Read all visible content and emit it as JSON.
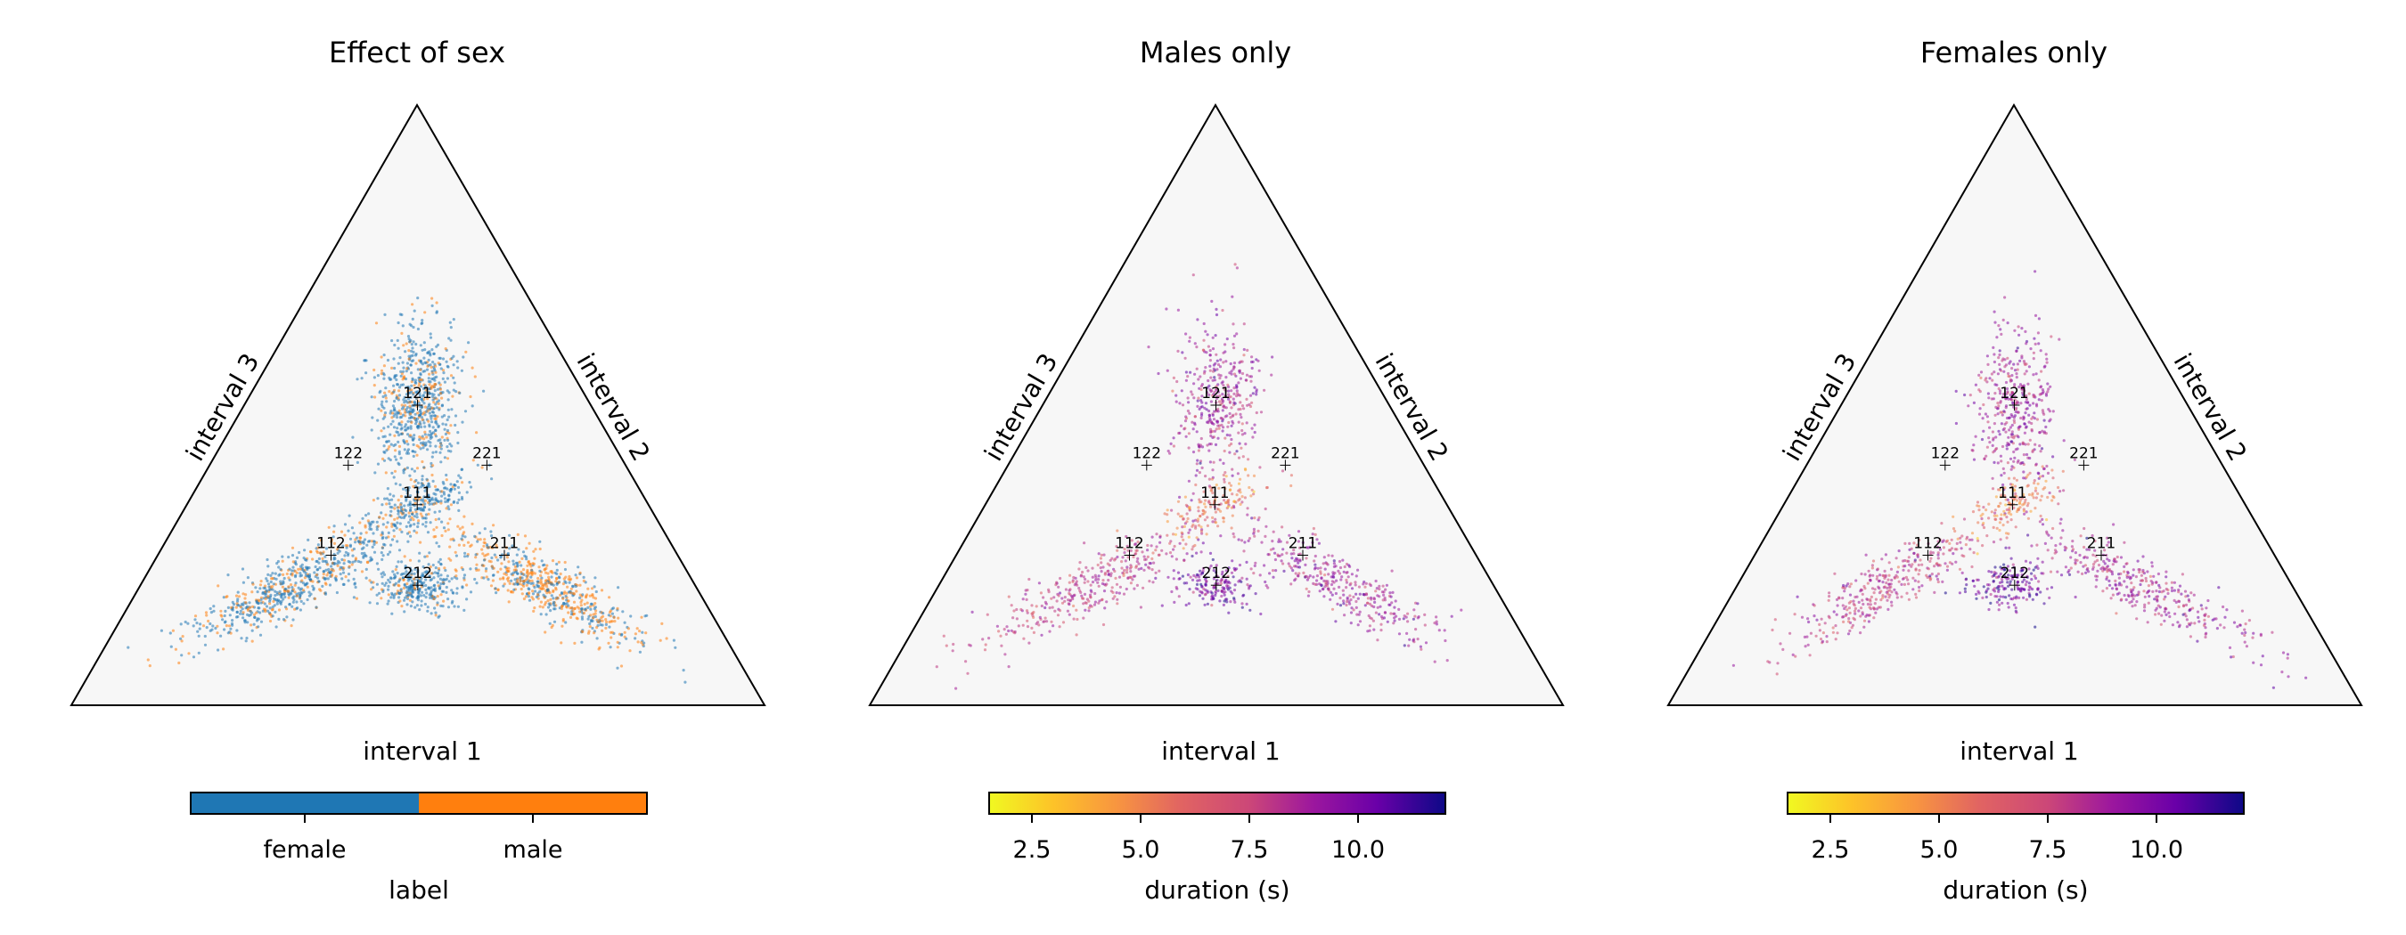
{
  "chart_data": [
    {
      "type": "scatter",
      "subtype": "ternary",
      "title": "Effect of sex",
      "axis_labels": [
        "interval 1",
        "interval 2",
        "interval 3"
      ],
      "background": "#f7f7f7",
      "color_mode": "categorical",
      "series": [
        {
          "name": "female",
          "color": "#1f77b4"
        },
        {
          "name": "male",
          "color": "#ff7f0e"
        }
      ],
      "legend_position": "bottom",
      "colorbar": {
        "label": "label",
        "ticks": [
          "female",
          "male"
        ]
      },
      "reference_points": [
        {
          "label": "111",
          "a": 0.333,
          "b": 0.333,
          "c": 0.333
        },
        {
          "label": "121",
          "a": 0.25,
          "b": 0.5,
          "c": 0.25
        },
        {
          "label": "122",
          "a": 0.2,
          "b": 0.4,
          "c": 0.4
        },
        {
          "label": "221",
          "a": 0.4,
          "b": 0.4,
          "c": 0.2
        },
        {
          "label": "112",
          "a": 0.25,
          "b": 0.25,
          "c": 0.5
        },
        {
          "label": "211",
          "a": 0.5,
          "b": 0.25,
          "c": 0.25
        },
        {
          "label": "212",
          "a": 0.4,
          "b": 0.2,
          "c": 0.4
        }
      ],
      "clusters": [
        {
          "near": "121",
          "a": 0.25,
          "b": 0.5,
          "c": 0.25,
          "mix": [
            0.75,
            0.25
          ]
        },
        {
          "near": "112",
          "a": 0.22,
          "b": 0.2,
          "c": 0.58,
          "mix": [
            0.7,
            0.3
          ]
        },
        {
          "near": "211",
          "a": 0.58,
          "b": 0.2,
          "c": 0.22,
          "mix": [
            0.45,
            0.55
          ]
        },
        {
          "near": "212",
          "a": 0.4,
          "b": 0.2,
          "c": 0.4,
          "mix": [
            0.85,
            0.15
          ]
        }
      ]
    },
    {
      "type": "scatter",
      "subtype": "ternary",
      "title": "Males only",
      "axis_labels": [
        "interval 1",
        "interval 2",
        "interval 3"
      ],
      "background": "#f7f7f7",
      "color_mode": "continuous",
      "colormap": "plasma_r",
      "colorbar": {
        "label": "duration (s)",
        "range": [
          1.5,
          12.0
        ],
        "ticks": [
          "2.5",
          "5.0",
          "7.5",
          "10.0"
        ]
      },
      "reference_points": [
        {
          "label": "111",
          "a": 0.333,
          "b": 0.333,
          "c": 0.333
        },
        {
          "label": "121",
          "a": 0.25,
          "b": 0.5,
          "c": 0.25
        },
        {
          "label": "122",
          "a": 0.2,
          "b": 0.4,
          "c": 0.4
        },
        {
          "label": "221",
          "a": 0.4,
          "b": 0.4,
          "c": 0.2
        },
        {
          "label": "112",
          "a": 0.25,
          "b": 0.25,
          "c": 0.5
        },
        {
          "label": "211",
          "a": 0.5,
          "b": 0.25,
          "c": 0.25
        },
        {
          "label": "212",
          "a": 0.4,
          "b": 0.2,
          "c": 0.4
        }
      ],
      "duration_range_shown": [
        6.0,
        11.0
      ]
    },
    {
      "type": "scatter",
      "subtype": "ternary",
      "title": "Females only",
      "axis_labels": [
        "interval 1",
        "interval 2",
        "interval 3"
      ],
      "background": "#f7f7f7",
      "color_mode": "continuous",
      "colormap": "plasma_r",
      "colorbar": {
        "label": "duration (s)",
        "range": [
          1.5,
          12.0
        ],
        "ticks": [
          "2.5",
          "5.0",
          "7.5",
          "10.0"
        ]
      },
      "reference_points": [
        {
          "label": "111",
          "a": 0.333,
          "b": 0.333,
          "c": 0.333
        },
        {
          "label": "121",
          "a": 0.25,
          "b": 0.5,
          "c": 0.25
        },
        {
          "label": "122",
          "a": 0.2,
          "b": 0.4,
          "c": 0.4
        },
        {
          "label": "221",
          "a": 0.4,
          "b": 0.4,
          "c": 0.2
        },
        {
          "label": "112",
          "a": 0.25,
          "b": 0.25,
          "c": 0.5
        },
        {
          "label": "211",
          "a": 0.5,
          "b": 0.25,
          "c": 0.25
        },
        {
          "label": "212",
          "a": 0.4,
          "b": 0.2,
          "c": 0.4
        }
      ],
      "duration_range_shown": [
        5.5,
        11.0
      ]
    }
  ]
}
